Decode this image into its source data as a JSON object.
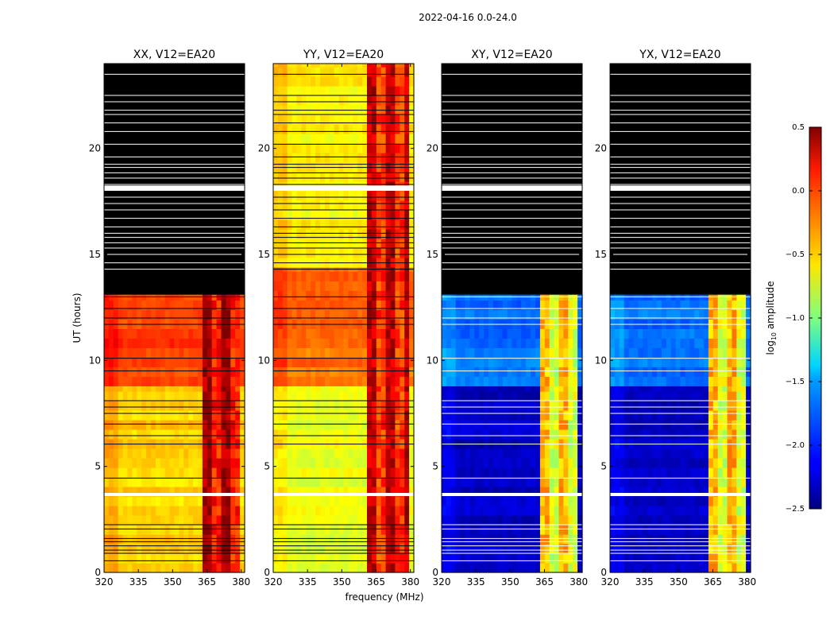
{
  "chart_data": {
    "type": "heatmap",
    "title": "2022-04-16 0.0-24.0",
    "xlabel": "frequency (MHz)",
    "ylabel": "UT (hours)",
    "xlim": [
      320,
      381.5
    ],
    "ylim": [
      0,
      24
    ],
    "x_ticks": [
      320,
      335,
      350,
      365,
      380
    ],
    "x_tick_labels": [
      "320",
      "335",
      "350",
      "365",
      "380"
    ],
    "y_ticks": [
      0,
      5,
      10,
      15,
      20
    ],
    "y_tick_labels": [
      "0",
      "5",
      "10",
      "15",
      "20"
    ],
    "colorbar": {
      "label": "log10 amplitude",
      "label_main": "log",
      "label_sub": "10",
      "label_rest": " amplitude",
      "colormap": "jet",
      "range": [
        -2.5,
        0.5
      ],
      "ticks": [
        0.5,
        0.0,
        -0.5,
        -1.0,
        -1.5,
        -2.0,
        -2.5
      ],
      "tick_labels": [
        "0.5",
        "0.0",
        "−0.5",
        "−1.0",
        "−1.5",
        "−2.0",
        "−2.5"
      ]
    },
    "panels": [
      {
        "id": "xx",
        "title": "XX, V12=EA20",
        "blank_above": 13.1,
        "segments": [
          {
            "from": 0.0,
            "to": 8.8,
            "base": -0.5
          },
          {
            "from": 8.8,
            "to": 13.1,
            "base": -0.05
          }
        ],
        "rfi_band_mhz": [
          363.5,
          378.5
        ],
        "rfi_level": 0.4
      },
      {
        "id": "yy",
        "title": "YY, V12=EA20",
        "blank_above": 24.0,
        "segments": [
          {
            "from": 0.0,
            "to": 8.8,
            "base": -0.7
          },
          {
            "from": 8.8,
            "to": 14.4,
            "base": -0.2
          },
          {
            "from": 14.4,
            "to": 24.0,
            "base": -0.6
          }
        ],
        "rfi_band_mhz": [
          362.0,
          380.0
        ],
        "rfi_level": 0.3
      },
      {
        "id": "xy",
        "title": "XY, V12=EA20",
        "blank_above": 13.1,
        "segments": [
          {
            "from": 0.0,
            "to": 8.8,
            "base": -2.3
          },
          {
            "from": 8.8,
            "to": 13.1,
            "base": -1.8
          }
        ],
        "rfi_band_mhz": [
          363.5,
          380.0
        ],
        "rfi_level": -0.4
      },
      {
        "id": "yx",
        "title": "YX, V12=EA20",
        "blank_above": 13.1,
        "segments": [
          {
            "from": 0.0,
            "to": 8.8,
            "base": -2.3
          },
          {
            "from": 8.8,
            "to": 13.1,
            "base": -1.8
          }
        ],
        "rfi_band_mhz": [
          363.5,
          380.0
        ],
        "rfi_level": -0.4
      }
    ],
    "flagged_times_ut": [
      0.55,
      0.9,
      1.05,
      1.25,
      1.45,
      1.6,
      2.05,
      2.25,
      3.7,
      4.45,
      6.05,
      6.45,
      7.0,
      7.5,
      7.8,
      8.1,
      9.5,
      10.1,
      11.7,
      12.0,
      12.45,
      13.0
    ],
    "flagged_times_upper_ut": [
      14.3,
      14.6,
      15.0,
      15.3,
      15.55,
      15.8,
      16.0,
      16.3,
      16.7,
      17.1,
      17.4,
      17.7,
      18.1,
      18.3,
      18.6,
      18.85,
      19.1,
      19.25,
      19.6,
      20.2,
      20.8,
      21.2,
      21.6,
      21.8,
      22.2,
      22.5,
      23.5
    ]
  }
}
